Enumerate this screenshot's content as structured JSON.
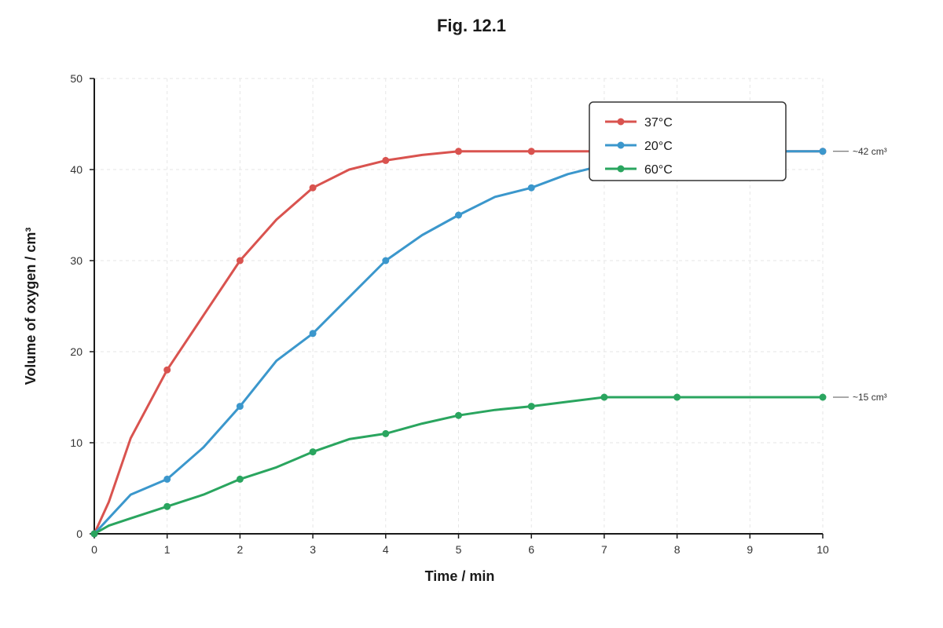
{
  "chart_data": {
    "type": "line",
    "title": "Fig. 12.1",
    "xlabel": "Time / min",
    "ylabel": "Volume of oxygen / cm³",
    "xlim": [
      0,
      10
    ],
    "ylim": [
      0,
      50
    ],
    "x_ticks": [
      "0",
      "1",
      "2",
      "3",
      "4",
      "5",
      "6",
      "7",
      "8",
      "9",
      "10"
    ],
    "y_ticks": [
      "0",
      "10",
      "20",
      "30",
      "40",
      "50"
    ],
    "grid": true,
    "legend_position": "top-right",
    "series": [
      {
        "name": "37°C",
        "color": "#d9534f",
        "line": [
          [
            0,
            0
          ],
          [
            0.2,
            3.5
          ],
          [
            0.5,
            10.5
          ],
          [
            1,
            18
          ],
          [
            1.5,
            24
          ],
          [
            2,
            30
          ],
          [
            2.5,
            34.5
          ],
          [
            3,
            38
          ],
          [
            3.5,
            40
          ],
          [
            4,
            41
          ],
          [
            4.5,
            41.6
          ],
          [
            5,
            42
          ],
          [
            6,
            42
          ],
          [
            7,
            42
          ],
          [
            8,
            42
          ],
          [
            9,
            42
          ],
          [
            10,
            42
          ]
        ],
        "markers": [
          [
            0,
            0
          ],
          [
            1,
            18
          ],
          [
            2,
            30
          ],
          [
            3,
            38
          ],
          [
            4,
            41
          ],
          [
            5,
            42
          ],
          [
            6,
            42
          ],
          [
            7,
            42
          ],
          [
            8,
            42
          ],
          [
            10,
            42
          ]
        ]
      },
      {
        "name": "20°C",
        "color": "#3b97cc",
        "line": [
          [
            0,
            0
          ],
          [
            0.5,
            4.3
          ],
          [
            1,
            6
          ],
          [
            1.5,
            9.5
          ],
          [
            2,
            14
          ],
          [
            2.5,
            19
          ],
          [
            3,
            22
          ],
          [
            3.5,
            26
          ],
          [
            4,
            30
          ],
          [
            4.5,
            32.8
          ],
          [
            5,
            35
          ],
          [
            5.5,
            37
          ],
          [
            6,
            38
          ],
          [
            6.5,
            39.5
          ],
          [
            7,
            40.5
          ],
          [
            8,
            41.5
          ],
          [
            9,
            42
          ],
          [
            10,
            42
          ]
        ],
        "markers": [
          [
            0,
            0
          ],
          [
            1,
            6
          ],
          [
            2,
            14
          ],
          [
            3,
            22
          ],
          [
            4,
            30
          ],
          [
            5,
            35
          ],
          [
            6,
            38
          ],
          [
            10,
            42
          ]
        ]
      },
      {
        "name": "60°C",
        "color": "#2aa55f",
        "line": [
          [
            0,
            0
          ],
          [
            0.2,
            0.9
          ],
          [
            0.5,
            1.7
          ],
          [
            1,
            3
          ],
          [
            1.5,
            4.3
          ],
          [
            2,
            6
          ],
          [
            2.5,
            7.3
          ],
          [
            3,
            9
          ],
          [
            3.5,
            10.4
          ],
          [
            4,
            11
          ],
          [
            4.5,
            12.1
          ],
          [
            5,
            13
          ],
          [
            5.5,
            13.6
          ],
          [
            6,
            14
          ],
          [
            6.5,
            14.5
          ],
          [
            7,
            15
          ],
          [
            8,
            15
          ],
          [
            9,
            15
          ],
          [
            10,
            15
          ]
        ],
        "markers": [
          [
            0,
            0
          ],
          [
            1,
            3
          ],
          [
            2,
            6
          ],
          [
            3,
            9
          ],
          [
            4,
            11
          ],
          [
            5,
            13
          ],
          [
            6,
            14
          ],
          [
            7,
            15
          ],
          [
            8,
            15
          ],
          [
            10,
            15
          ]
        ]
      }
    ],
    "annotations": [
      {
        "text": "~42 cm³",
        "y": 42
      },
      {
        "text": "~15 cm³",
        "y": 15
      }
    ]
  }
}
